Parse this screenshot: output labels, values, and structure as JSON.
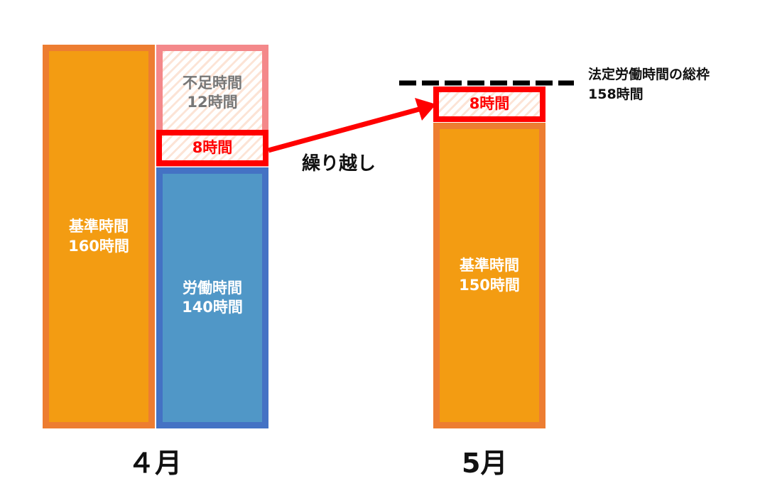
{
  "april": {
    "month": "４月",
    "base": {
      "title": "基準時間",
      "hours": "160時間"
    },
    "shortage": {
      "title": "不足時間",
      "hours": "12時間"
    },
    "carry": "8時間",
    "work": {
      "title": "労働時間",
      "hours": "140時間"
    }
  },
  "may": {
    "month": "5月",
    "base": {
      "title": "基準時間",
      "hours": "150時間"
    },
    "carry": "8時間"
  },
  "arrow_label": "繰り越し",
  "limit": {
    "title": "法定労働時間の総枠",
    "hours": "158時間"
  },
  "colors": {
    "base": "#F39C12",
    "base_border": "#ED7D31",
    "work": "#5097C7",
    "work_border": "#4472C4",
    "shortage_border": "#F4888A",
    "carry": "#FF0000"
  }
}
